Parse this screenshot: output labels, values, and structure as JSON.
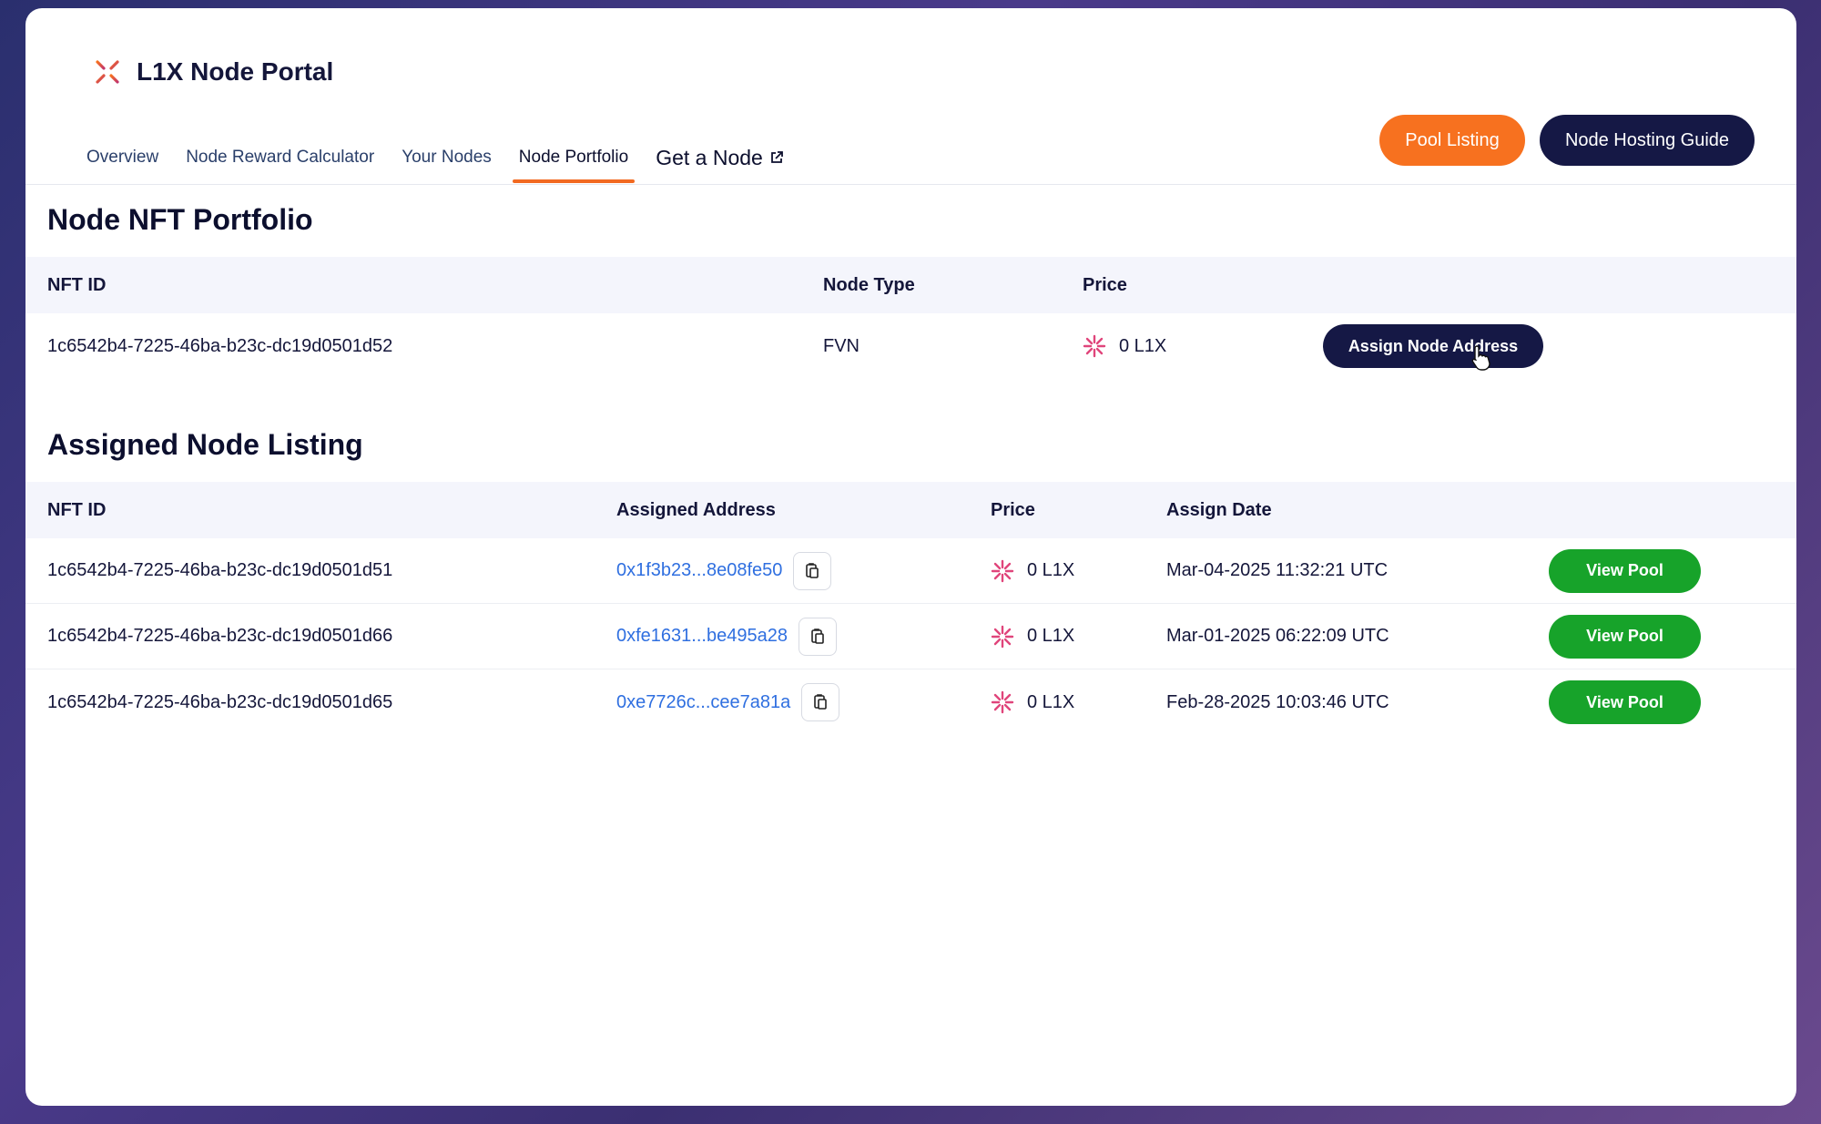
{
  "app": {
    "title": "L1X Node Portal"
  },
  "nav": {
    "items": [
      {
        "label": "Overview"
      },
      {
        "label": "Node Reward Calculator"
      },
      {
        "label": "Your Nodes"
      },
      {
        "label": "Node Portfolio",
        "active": true
      },
      {
        "label": "Get a Node",
        "external": true
      }
    ]
  },
  "header_actions": {
    "pool_listing": "Pool Listing",
    "hosting_guide": "Node Hosting Guide"
  },
  "portfolio": {
    "title": "Node NFT Portfolio",
    "headers": {
      "nft_id": "NFT ID",
      "node_type": "Node Type",
      "price": "Price"
    },
    "rows": [
      {
        "nft_id": "1c6542b4-7225-46ba-b23c-dc19d0501d52",
        "node_type": "FVN",
        "price": "0 L1X",
        "action": "Assign Node Address"
      }
    ]
  },
  "assigned": {
    "title": "Assigned Node Listing",
    "headers": {
      "nft_id": "NFT ID",
      "address": "Assigned Address",
      "price": "Price",
      "date": "Assign Date"
    },
    "rows": [
      {
        "nft_id": "1c6542b4-7225-46ba-b23c-dc19d0501d51",
        "address": "0x1f3b23...8e08fe50",
        "price": "0 L1X",
        "date": "Mar-04-2025 11:32:21 UTC",
        "action": "View Pool"
      },
      {
        "nft_id": "1c6542b4-7225-46ba-b23c-dc19d0501d66",
        "address": "0xfe1631...be495a28",
        "price": "0 L1X",
        "date": "Mar-01-2025 06:22:09 UTC",
        "action": "View Pool"
      },
      {
        "nft_id": "1c6542b4-7225-46ba-b23c-dc19d0501d65",
        "address": "0xe7726c...cee7a81a",
        "price": "0 L1X",
        "date": "Feb-28-2025 10:03:46 UTC",
        "action": "View Pool"
      }
    ]
  },
  "colors": {
    "accent_orange": "#f7711f",
    "navy": "#151845",
    "green": "#17a32a",
    "link_blue": "#2f6fe0"
  }
}
